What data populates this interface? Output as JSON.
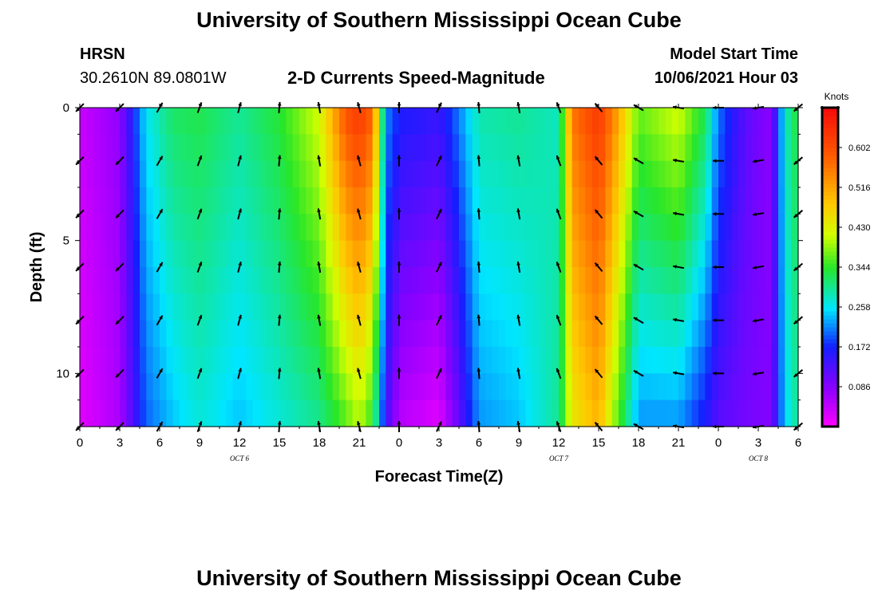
{
  "page": {
    "title": "University of Southern Mississippi Ocean Cube",
    "footer_title": "University of Southern Mississippi Ocean Cube",
    "station": "HRSN",
    "coords": "30.2610N  89.0801W",
    "chart_heading": "2-D Currents Speed-Magnitude",
    "model_start_label": "Model Start Time",
    "model_start_value": "10/06/2021 Hour 03"
  },
  "chart_data": {
    "type": "heatmap",
    "title": "2-D Currents Speed-Magnitude",
    "xlabel": "Forecast Time(Z)",
    "ylabel": "Depth (ft)",
    "x_tick_labels": [
      "0",
      "3",
      "6",
      "9",
      "12",
      "15",
      "18",
      "21",
      "0",
      "3",
      "6",
      "9",
      "12",
      "15",
      "18",
      "21",
      "0",
      "3",
      "6"
    ],
    "x_hours": [
      0,
      3,
      6,
      9,
      12,
      15,
      18,
      21,
      24,
      27,
      30,
      33,
      36,
      39,
      42,
      45,
      48,
      51,
      54
    ],
    "date_labels": [
      {
        "text": "OCT 6",
        "hour": 12
      },
      {
        "text": "OCT 7",
        "hour": 36
      },
      {
        "text": "OCT 8",
        "hour": 51
      }
    ],
    "y_ticks": [
      0,
      5,
      10
    ],
    "ylim": [
      0,
      12
    ],
    "xlim": [
      0,
      54
    ],
    "colorbar": {
      "label": "Knots",
      "ticks": [
        "0.602",
        "0.516",
        "0.430",
        "0.344",
        "0.258",
        "0.172",
        "0.086"
      ],
      "tick_values": [
        0.602,
        0.516,
        0.43,
        0.344,
        0.258,
        0.172,
        0.086
      ],
      "range": [
        0.0,
        0.688
      ]
    },
    "depths_ft": [
      0,
      1,
      2,
      3,
      4,
      5,
      6,
      7,
      8,
      9,
      10,
      11,
      12
    ],
    "speed_by_hour": [
      {
        "hour": 0,
        "surface": 0.04,
        "bottom": 0.02
      },
      {
        "hour": 3,
        "surface": 0.08,
        "bottom": 0.06
      },
      {
        "hour": 5,
        "surface": 0.26,
        "bottom": 0.2
      },
      {
        "hour": 7,
        "surface": 0.32,
        "bottom": 0.24
      },
      {
        "hour": 9,
        "surface": 0.33,
        "bottom": 0.27
      },
      {
        "hour": 12,
        "surface": 0.3,
        "bottom": 0.24
      },
      {
        "hour": 15,
        "surface": 0.34,
        "bottom": 0.27
      },
      {
        "hour": 18,
        "surface": 0.42,
        "bottom": 0.3
      },
      {
        "hour": 20,
        "surface": 0.6,
        "bottom": 0.36
      },
      {
        "hour": 21,
        "surface": 0.63,
        "bottom": 0.4
      },
      {
        "hour": 22,
        "surface": 0.58,
        "bottom": 0.34
      },
      {
        "hour": 23,
        "surface": 0.22,
        "bottom": 0.14
      },
      {
        "hour": 24,
        "surface": 0.17,
        "bottom": 0.05
      },
      {
        "hour": 27,
        "surface": 0.15,
        "bottom": 0.02
      },
      {
        "hour": 28,
        "surface": 0.19,
        "bottom": 0.08
      },
      {
        "hour": 30,
        "surface": 0.29,
        "bottom": 0.22
      },
      {
        "hour": 33,
        "surface": 0.3,
        "bottom": 0.24
      },
      {
        "hour": 36,
        "surface": 0.28,
        "bottom": 0.3
      },
      {
        "hour": 37,
        "surface": 0.56,
        "bottom": 0.44
      },
      {
        "hour": 39,
        "surface": 0.63,
        "bottom": 0.5
      },
      {
        "hour": 40,
        "surface": 0.56,
        "bottom": 0.4
      },
      {
        "hour": 42,
        "surface": 0.37,
        "bottom": 0.22
      },
      {
        "hour": 45,
        "surface": 0.42,
        "bottom": 0.22
      },
      {
        "hour": 47,
        "surface": 0.33,
        "bottom": 0.16
      },
      {
        "hour": 48,
        "surface": 0.21,
        "bottom": 0.12
      },
      {
        "hour": 50,
        "surface": 0.12,
        "bottom": 0.1
      },
      {
        "hour": 52,
        "surface": 0.08,
        "bottom": 0.09
      },
      {
        "hour": 53,
        "surface": 0.28,
        "bottom": 0.25
      },
      {
        "hour": 54,
        "surface": 0.34,
        "bottom": 0.3
      }
    ],
    "vector_hours": [
      0,
      3,
      6,
      9,
      12,
      15,
      18,
      21,
      24,
      27,
      30,
      33,
      36,
      39,
      42,
      45,
      48,
      51,
      54
    ],
    "vector_depths_ft": [
      0,
      2,
      4,
      6,
      8,
      10,
      12
    ],
    "vector_direction_deg": [
      225,
      225,
      30,
      20,
      15,
      5,
      350,
      345,
      0,
      25,
      355,
      350,
      340,
      320,
      300,
      280,
      270,
      260,
      230
    ]
  }
}
